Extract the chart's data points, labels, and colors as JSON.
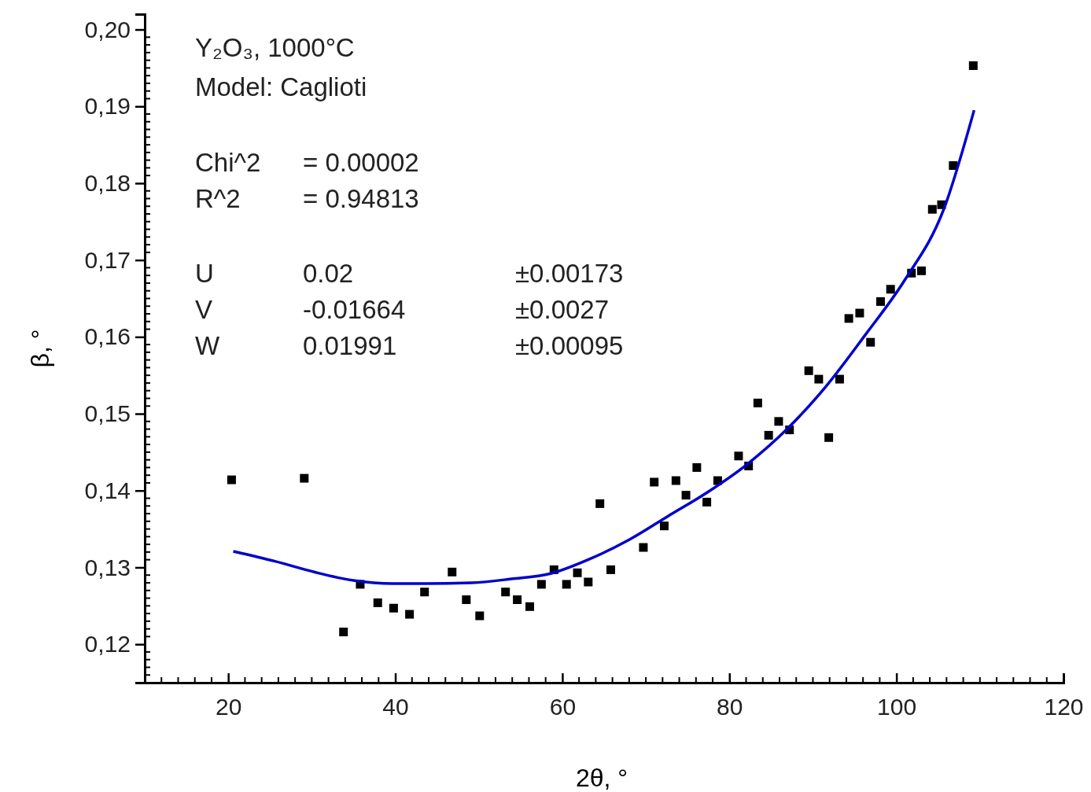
{
  "chart_data": {
    "type": "scatter",
    "xlabel": "2θ, °",
    "ylabel": "β, °",
    "xlim": [
      10,
      120
    ],
    "ylim": [
      0.115,
      0.202
    ],
    "xticks": [
      20,
      40,
      60,
      80,
      100,
      120
    ],
    "yticks": [
      {
        "value": 0.12,
        "label": "0,12"
      },
      {
        "value": 0.13,
        "label": "0,13"
      },
      {
        "value": 0.14,
        "label": "0,14"
      },
      {
        "value": 0.15,
        "label": "0,15"
      },
      {
        "value": 0.16,
        "label": "0,16"
      },
      {
        "value": 0.17,
        "label": "0,17"
      },
      {
        "value": 0.18,
        "label": "0,18"
      },
      {
        "value": 0.19,
        "label": "0,19"
      },
      {
        "value": 0.2,
        "label": "0,20"
      }
    ],
    "grid": false,
    "annotations": [
      "Y₂O₃, 1000°C",
      "Model: Caglioti",
      "Chi^2",
      "= 0.00002",
      "R^2",
      "= 0.94813",
      "U",
      "0.02",
      "±0.00173",
      "V",
      "-0.01664",
      "±0.0027",
      "W",
      "0.01991",
      "±0.00095"
    ],
    "series": [
      {
        "color": "#000000",
        "marker": "square",
        "x": [
          20.4,
          29.1,
          33.8,
          35.8,
          37.9,
          39.8,
          41.7,
          43.5,
          46.8,
          48.5,
          50.1,
          53.2,
          54.6,
          56.1,
          57.5,
          59.0,
          60.5,
          61.8,
          63.1,
          64.5,
          65.8,
          69.7,
          71.0,
          72.2,
          73.6,
          74.8,
          76.1,
          77.3,
          78.6,
          81.1,
          82.3,
          83.4,
          84.7,
          85.9,
          87.2,
          89.5,
          90.7,
          91.9,
          93.2,
          94.3,
          95.6,
          96.9,
          98.1,
          99.3,
          101.8,
          103.0,
          104.3,
          105.4,
          106.8,
          109.2
        ],
        "values": [
          0.1414,
          0.1416,
          0.1216,
          0.1278,
          0.1254,
          0.1247,
          0.1239,
          0.1268,
          0.1294,
          0.1258,
          0.1237,
          0.1268,
          0.1258,
          0.1249,
          0.1278,
          0.1297,
          0.1278,
          0.1293,
          0.1281,
          0.1383,
          0.1297,
          0.1326,
          0.1411,
          0.1354,
          0.1413,
          0.1394,
          0.143,
          0.1385,
          0.1413,
          0.1445,
          0.1432,
          0.1514,
          0.1472,
          0.149,
          0.1479,
          0.1556,
          0.1545,
          0.1469,
          0.1545,
          0.1624,
          0.1631,
          0.1593,
          0.1646,
          0.1662,
          0.1683,
          0.1686,
          0.1766,
          0.1772,
          0.1823,
          0.1953
        ]
      },
      {
        "type": "line",
        "color": "#0000cc",
        "line_style": "solid",
        "x": [
          20.6,
          25.6,
          30.3,
          35.0,
          39.7,
          43.5,
          49.1,
          53.9,
          58.6,
          63.3,
          68.0,
          72.7,
          77.4,
          82.1,
          86.9,
          91.6,
          96.3,
          101.0,
          105.7,
          109.3
        ],
        "values": [
          0.1321,
          0.1308,
          0.1294,
          0.1283,
          0.1279,
          0.1279,
          0.128,
          0.1285,
          0.1292,
          0.1311,
          0.1336,
          0.1367,
          0.1398,
          0.1434,
          0.148,
          0.1536,
          0.1603,
          0.1674,
          0.1767,
          0.1895
        ]
      }
    ]
  }
}
